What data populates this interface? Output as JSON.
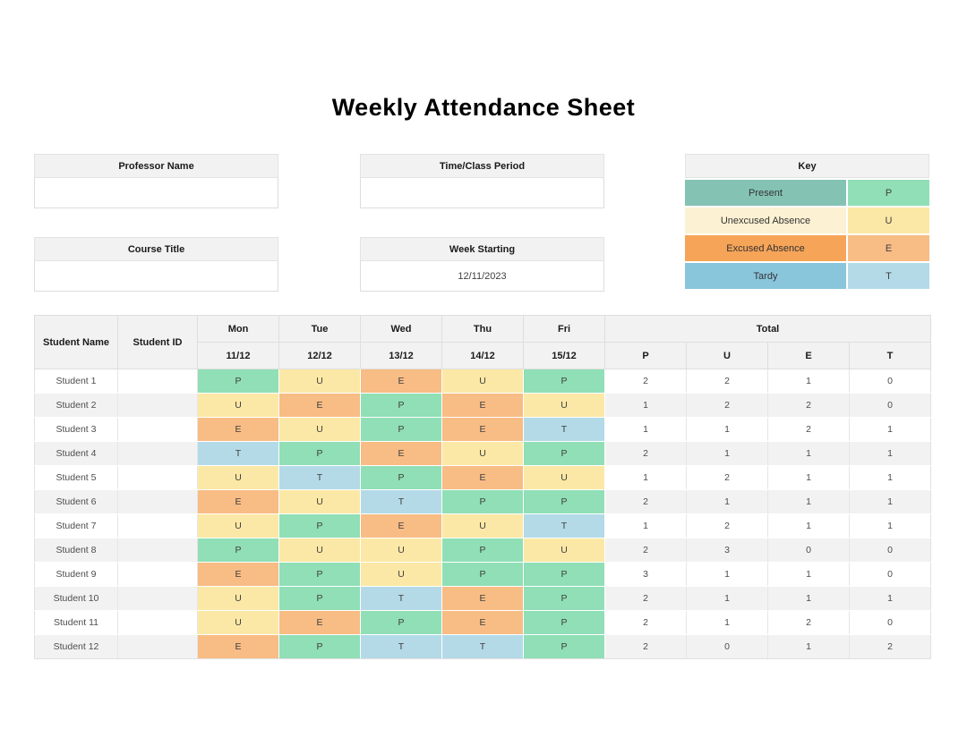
{
  "title": "Weekly Attendance Sheet",
  "info": {
    "professor": {
      "label": "Professor Name",
      "value": ""
    },
    "time_period": {
      "label": "Time/Class Period",
      "value": ""
    },
    "course": {
      "label": "Course Title",
      "value": ""
    },
    "week_starting": {
      "label": "Week Starting",
      "value": "12/11/2023"
    }
  },
  "key": {
    "title": "Key",
    "rows": [
      {
        "label": "Present",
        "code": "P",
        "label_bg": "#84c3b4",
        "code_bg": "#90dfb6"
      },
      {
        "label": "Unexcused Absence",
        "code": "U",
        "label_bg": "#fcf1d2",
        "code_bg": "#fce8a6"
      },
      {
        "label": "Excused Absence",
        "code": "E",
        "label_bg": "#f6a458",
        "code_bg": "#f8bc85"
      },
      {
        "label": "Tardy",
        "code": "T",
        "label_bg": "#89c6db",
        "code_bg": "#b4dae8"
      }
    ]
  },
  "attendance_table": {
    "headers": {
      "student_name": "Student Name",
      "student_id": "Student ID",
      "days": [
        {
          "day": "Mon",
          "date": "11/12"
        },
        {
          "day": "Tue",
          "date": "12/12"
        },
        {
          "day": "Wed",
          "date": "13/12"
        },
        {
          "day": "Thu",
          "date": "14/12"
        },
        {
          "day": "Fri",
          "date": "15/12"
        }
      ],
      "total": "Total",
      "total_cols": [
        "P",
        "U",
        "E",
        "T"
      ]
    },
    "code_colors": {
      "P": "#90dfb6",
      "U": "#fce8a6",
      "E": "#f8bc85",
      "T": "#b4dae8"
    },
    "rows": [
      {
        "name": "Student 1",
        "id": "",
        "codes": [
          "P",
          "U",
          "E",
          "U",
          "P"
        ],
        "totals": [
          2,
          2,
          1,
          0
        ]
      },
      {
        "name": "Student 2",
        "id": "",
        "codes": [
          "U",
          "E",
          "P",
          "E",
          "U"
        ],
        "totals": [
          1,
          2,
          2,
          0
        ]
      },
      {
        "name": "Student 3",
        "id": "",
        "codes": [
          "E",
          "U",
          "P",
          "E",
          "T"
        ],
        "totals": [
          1,
          1,
          2,
          1
        ]
      },
      {
        "name": "Student 4",
        "id": "",
        "codes": [
          "T",
          "P",
          "E",
          "U",
          "P"
        ],
        "totals": [
          2,
          1,
          1,
          1
        ]
      },
      {
        "name": "Student 5",
        "id": "",
        "codes": [
          "U",
          "T",
          "P",
          "E",
          "U"
        ],
        "totals": [
          1,
          2,
          1,
          1
        ]
      },
      {
        "name": "Student 6",
        "id": "",
        "codes": [
          "E",
          "U",
          "T",
          "P",
          "P"
        ],
        "totals": [
          2,
          1,
          1,
          1
        ]
      },
      {
        "name": "Student 7",
        "id": "",
        "codes": [
          "U",
          "P",
          "E",
          "U",
          "T"
        ],
        "totals": [
          1,
          2,
          1,
          1
        ]
      },
      {
        "name": "Student 8",
        "id": "",
        "codes": [
          "P",
          "U",
          "U",
          "P",
          "U"
        ],
        "totals": [
          2,
          3,
          0,
          0
        ]
      },
      {
        "name": "Student 9",
        "id": "",
        "codes": [
          "E",
          "P",
          "U",
          "P",
          "P"
        ],
        "totals": [
          3,
          1,
          1,
          0
        ]
      },
      {
        "name": "Student 10",
        "id": "",
        "codes": [
          "U",
          "P",
          "T",
          "E",
          "P"
        ],
        "totals": [
          2,
          1,
          1,
          1
        ]
      },
      {
        "name": "Student 11",
        "id": "",
        "codes": [
          "U",
          "E",
          "P",
          "E",
          "P"
        ],
        "totals": [
          2,
          1,
          2,
          0
        ]
      },
      {
        "name": "Student 12",
        "id": "",
        "codes": [
          "E",
          "P",
          "T",
          "T",
          "P"
        ],
        "totals": [
          2,
          0,
          1,
          2
        ]
      }
    ]
  },
  "colors": {
    "header_bg": "#f2f2f2",
    "stripe_bg": "#f2f2f2",
    "border": "#dedede"
  }
}
